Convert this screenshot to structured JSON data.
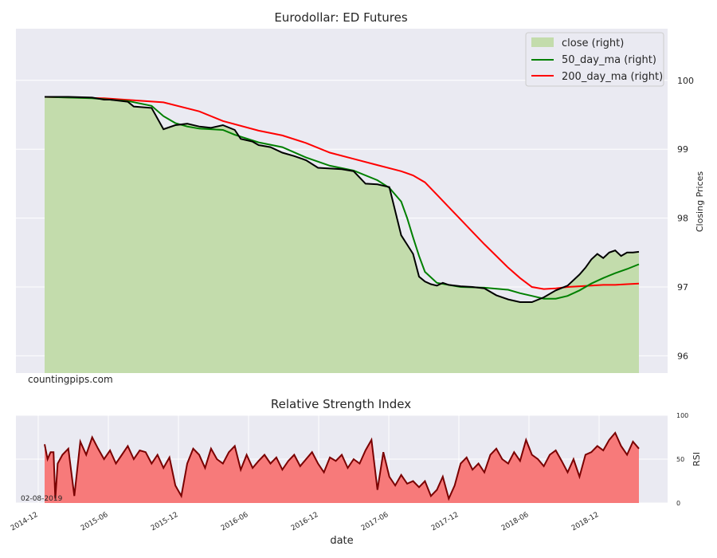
{
  "colors": {
    "plot_bg": "#eaeaf2",
    "grid": "#ffffff",
    "fill_green": "#c3dcac",
    "ma50": "#008000",
    "ma200": "#ff0000",
    "close_line": "#000000",
    "rsi_fill": "#f77a7a",
    "rsi_line": "#7a0000"
  },
  "chart_data": [
    {
      "type": "area",
      "title": "Eurodollar: ED Futures",
      "ylabel": "Closing Prices",
      "ylim": [
        95.75,
        100.75
      ],
      "yticks": [
        "96",
        "97",
        "98",
        "99",
        "100"
      ],
      "legend": {
        "placement": "top-right",
        "entries": [
          "close (right)",
          "50_day_ma (right)",
          "200_day_ma (right)"
        ]
      },
      "watermark": "countingpips.com",
      "series": [
        {
          "name": "close (right)",
          "x": [
            0.0,
            0.04,
            0.08,
            0.1,
            0.11,
            0.14,
            0.15,
            0.18,
            0.2,
            0.22,
            0.24,
            0.26,
            0.28,
            0.3,
            0.32,
            0.33,
            0.35,
            0.36,
            0.38,
            0.4,
            0.42,
            0.44,
            0.46,
            0.48,
            0.5,
            0.52,
            0.54,
            0.56,
            0.58,
            0.6,
            0.62,
            0.63,
            0.64,
            0.65,
            0.66,
            0.67,
            0.68,
            0.7,
            0.72,
            0.74,
            0.76,
            0.78,
            0.8,
            0.82,
            0.84,
            0.86,
            0.88,
            0.9,
            0.91,
            0.92,
            0.93,
            0.94,
            0.95,
            0.96,
            0.97,
            0.98,
            0.99,
            1.0
          ],
          "values": [
            99.76,
            99.76,
            99.75,
            99.72,
            99.72,
            99.69,
            99.62,
            99.6,
            99.29,
            99.35,
            99.37,
            99.33,
            99.31,
            99.35,
            99.28,
            99.15,
            99.11,
            99.06,
            99.03,
            98.95,
            98.9,
            98.84,
            98.73,
            98.72,
            98.71,
            98.68,
            98.5,
            98.49,
            98.45,
            97.75,
            97.48,
            97.15,
            97.08,
            97.04,
            97.02,
            97.06,
            97.03,
            97.01,
            97.0,
            96.98,
            96.88,
            96.82,
            96.78,
            96.78,
            96.85,
            96.95,
            97.02,
            97.18,
            97.28,
            97.4,
            97.48,
            97.42,
            97.5,
            97.53,
            97.45,
            97.5,
            97.5,
            97.51
          ]
        },
        {
          "name": "50_day_ma (right)",
          "x": [
            0.0,
            0.08,
            0.14,
            0.18,
            0.2,
            0.22,
            0.24,
            0.26,
            0.3,
            0.32,
            0.36,
            0.4,
            0.44,
            0.48,
            0.52,
            0.56,
            0.58,
            0.6,
            0.61,
            0.62,
            0.63,
            0.64,
            0.66,
            0.7,
            0.74,
            0.78,
            0.8,
            0.82,
            0.84,
            0.86,
            0.88,
            0.9,
            0.92,
            0.94,
            0.96,
            0.98,
            1.0
          ],
          "values": [
            99.76,
            99.74,
            99.7,
            99.63,
            99.48,
            99.38,
            99.33,
            99.3,
            99.28,
            99.21,
            99.1,
            99.03,
            98.88,
            98.76,
            98.69,
            98.55,
            98.44,
            98.24,
            98.0,
            97.72,
            97.45,
            97.22,
            97.06,
            97.0,
            96.99,
            96.96,
            96.91,
            96.87,
            96.83,
            96.83,
            96.87,
            96.95,
            97.05,
            97.13,
            97.2,
            97.26,
            97.33
          ]
        },
        {
          "name": "200_day_ma (right)",
          "x": [
            0.0,
            0.1,
            0.2,
            0.26,
            0.3,
            0.36,
            0.4,
            0.44,
            0.48,
            0.52,
            0.56,
            0.6,
            0.62,
            0.64,
            0.66,
            0.68,
            0.7,
            0.72,
            0.74,
            0.76,
            0.78,
            0.8,
            0.82,
            0.84,
            0.86,
            0.88,
            0.9,
            0.92,
            0.94,
            0.96,
            0.98,
            1.0
          ],
          "values": [
            99.76,
            99.74,
            99.68,
            99.55,
            99.41,
            99.27,
            99.2,
            99.09,
            98.95,
            98.86,
            98.77,
            98.68,
            98.62,
            98.52,
            98.34,
            98.16,
            97.98,
            97.8,
            97.62,
            97.45,
            97.28,
            97.13,
            97.0,
            96.97,
            96.98,
            97.0,
            97.01,
            97.02,
            97.03,
            97.03,
            97.04,
            97.05
          ]
        }
      ]
    },
    {
      "type": "area",
      "title": "Relative Strength Index",
      "ylabel": "RSI",
      "xlabel": "date",
      "ylim": [
        0,
        100
      ],
      "yticks": [
        "0",
        "50",
        "100"
      ],
      "xticks": [
        "2014-12",
        "2015-06",
        "2015-12",
        "2016-06",
        "2016-12",
        "2017-06",
        "2017-12",
        "2018-06",
        "2018-12"
      ],
      "annotation": "02-08-2019",
      "series": [
        {
          "name": "RSI",
          "x": [
            0.0,
            0.005,
            0.01,
            0.015,
            0.018,
            0.022,
            0.03,
            0.04,
            0.05,
            0.06,
            0.07,
            0.08,
            0.09,
            0.1,
            0.11,
            0.12,
            0.13,
            0.14,
            0.15,
            0.16,
            0.17,
            0.18,
            0.19,
            0.2,
            0.21,
            0.22,
            0.23,
            0.24,
            0.25,
            0.26,
            0.27,
            0.28,
            0.29,
            0.3,
            0.31,
            0.32,
            0.33,
            0.34,
            0.35,
            0.36,
            0.37,
            0.38,
            0.39,
            0.4,
            0.41,
            0.42,
            0.43,
            0.44,
            0.45,
            0.46,
            0.47,
            0.48,
            0.49,
            0.5,
            0.51,
            0.52,
            0.53,
            0.54,
            0.55,
            0.56,
            0.57,
            0.58,
            0.59,
            0.6,
            0.61,
            0.62,
            0.63,
            0.64,
            0.65,
            0.66,
            0.67,
            0.68,
            0.69,
            0.7,
            0.71,
            0.72,
            0.73,
            0.74,
            0.75,
            0.76,
            0.77,
            0.78,
            0.79,
            0.8,
            0.81,
            0.82,
            0.83,
            0.84,
            0.85,
            0.86,
            0.87,
            0.88,
            0.89,
            0.9,
            0.91,
            0.92,
            0.93,
            0.94,
            0.95,
            0.96,
            0.97,
            0.98,
            0.99,
            1.0
          ],
          "values": [
            67,
            50,
            58,
            58,
            5,
            45,
            55,
            62,
            8,
            70,
            55,
            75,
            62,
            50,
            60,
            45,
            55,
            65,
            50,
            60,
            58,
            45,
            55,
            40,
            52,
            20,
            8,
            45,
            62,
            55,
            40,
            62,
            50,
            45,
            58,
            65,
            38,
            55,
            40,
            48,
            55,
            45,
            52,
            38,
            48,
            55,
            42,
            50,
            58,
            45,
            35,
            52,
            48,
            55,
            40,
            50,
            45,
            60,
            72,
            15,
            58,
            30,
            20,
            32,
            22,
            25,
            18,
            25,
            8,
            15,
            30,
            5,
            20,
            45,
            52,
            38,
            45,
            35,
            55,
            62,
            50,
            45,
            58,
            48,
            72,
            55,
            50,
            42,
            55,
            60,
            48,
            35,
            50,
            30,
            55,
            58,
            65,
            60,
            72,
            80,
            65,
            55,
            70,
            62
          ]
        }
      ]
    }
  ]
}
